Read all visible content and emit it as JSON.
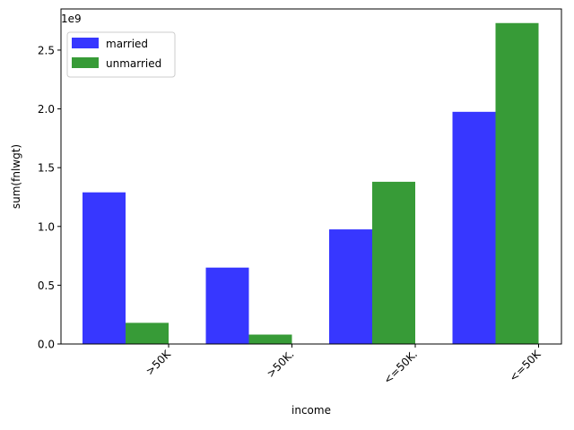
{
  "chart_data": {
    "type": "bar",
    "categories": [
      ">50K",
      ">50K.",
      "<=50K.",
      "<=50K"
    ],
    "series": [
      {
        "name": "married",
        "values": [
          1.29,
          0.65,
          0.975,
          1.975
        ],
        "color": "#3333ff"
      },
      {
        "name": "unmarried",
        "values": [
          0.18,
          0.08,
          1.38,
          2.73
        ],
        "color": "#339933"
      }
    ],
    "xlabel": "income",
    "ylabel": "sum(fnlwgt)",
    "scale_label": "1e9",
    "ylim": [
      0,
      2.85
    ],
    "yticks": [
      "0.0",
      "0.5",
      "1.0",
      "1.5",
      "2.0",
      "2.5"
    ],
    "grid": false,
    "legend_position": "top-left"
  }
}
